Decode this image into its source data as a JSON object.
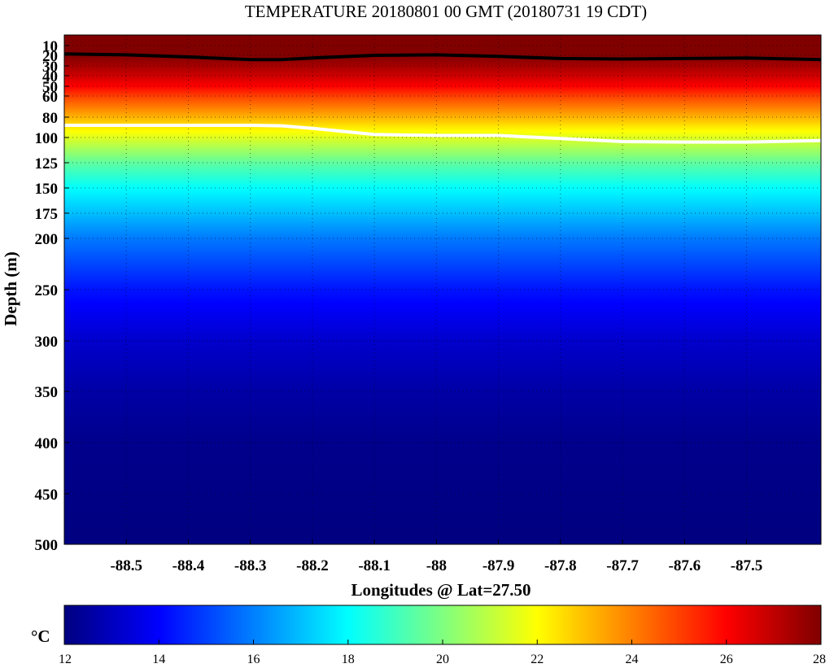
{
  "chart_data": {
    "type": "heatmap",
    "title": "TEMPERATURE 20180801 00 GMT (20180731 19 CDT)",
    "xlabel": "Longitudes @ Lat=27.50",
    "ylabel": "Depth (m)",
    "xlim": [
      -88.6,
      -87.38
    ],
    "ylim": [
      500,
      0
    ],
    "x_ticks": [
      "-88.5",
      "-88.4",
      "-88.3",
      "-88.2",
      "-88.1",
      "-88",
      "-87.9",
      "-87.8",
      "-87.7",
      "-87.6",
      "-87.5"
    ],
    "x_tick_values": [
      -88.5,
      -88.4,
      -88.3,
      -88.2,
      -88.1,
      -88.0,
      -87.9,
      -87.8,
      -87.7,
      -87.6,
      -87.5
    ],
    "y_ticks": [
      "10",
      "20",
      "30",
      "40",
      "50",
      "60",
      "80",
      "100",
      "125",
      "150",
      "175",
      "200",
      "250",
      "300",
      "350",
      "400",
      "450",
      "500"
    ],
    "y_tick_values": [
      10,
      20,
      30,
      40,
      50,
      60,
      80,
      100,
      125,
      150,
      175,
      200,
      250,
      300,
      350,
      400,
      450,
      500
    ],
    "grid": true,
    "colorbar": {
      "unit": "°C",
      "range": [
        12,
        28
      ],
      "ticks": [
        "12",
        "14",
        "16",
        "18",
        "20",
        "22",
        "24",
        "26",
        "28"
      ],
      "tick_values": [
        12,
        14,
        16,
        18,
        20,
        22,
        24,
        26,
        28
      ],
      "colormap": "jet"
    },
    "temperature_profile": {
      "depth": [
        0,
        10,
        20,
        30,
        40,
        50,
        60,
        70,
        80,
        90,
        100,
        110,
        125,
        150,
        175,
        200,
        250,
        300,
        350,
        400,
        500
      ],
      "temp": [
        28,
        28,
        28,
        27.4,
        26.8,
        26.0,
        25.0,
        24.1,
        23.2,
        22.3,
        21.5,
        20.7,
        19.5,
        18.0,
        17.0,
        15.9,
        14.3,
        13.2,
        12.6,
        12.2,
        12.0
      ]
    },
    "contours": [
      {
        "level": 28,
        "color": "#000000",
        "lon": [
          -88.6,
          -88.5,
          -88.4,
          -88.3,
          -88.25,
          -88.2,
          -88.1,
          -88.0,
          -87.9,
          -87.8,
          -87.7,
          -87.6,
          -87.5,
          -87.38
        ],
        "depth": [
          18.5,
          19.5,
          21.5,
          24,
          24,
          22.5,
          20,
          19.5,
          21,
          23,
          23.5,
          23,
          22.5,
          24
        ]
      },
      {
        "level": 22,
        "color": "#ffffff",
        "lon": [
          -88.6,
          -88.5,
          -88.4,
          -88.3,
          -88.25,
          -88.2,
          -88.1,
          -88.0,
          -87.9,
          -87.8,
          -87.7,
          -87.6,
          -87.5,
          -87.38
        ],
        "depth": [
          88,
          88,
          88,
          88,
          88.5,
          91,
          97,
          98,
          98,
          101,
          104,
          104.5,
          104.5,
          103
        ]
      }
    ]
  }
}
